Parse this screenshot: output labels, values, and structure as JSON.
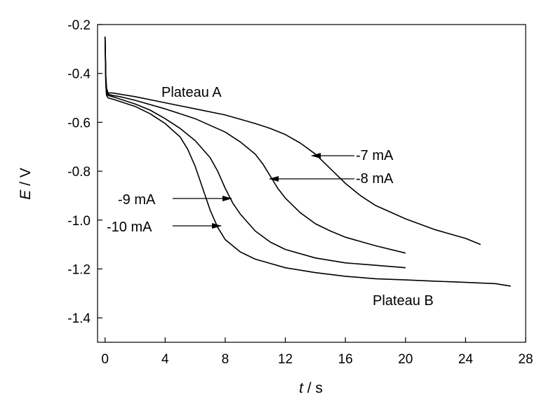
{
  "chart_data": {
    "type": "line",
    "xlabel_var": "t",
    "xlabel_unit": " / s",
    "ylabel_var": "E",
    "ylabel_unit": " / V",
    "xlim": [
      -0.5,
      28
    ],
    "ylim": [
      -1.5,
      -0.2
    ],
    "xticks": [
      0,
      4,
      8,
      12,
      16,
      20,
      24,
      28
    ],
    "yticks": [
      -0.2,
      -0.4,
      -0.6,
      -0.8,
      -1.0,
      -1.2,
      -1.4
    ],
    "ytick_labels": [
      "-0.2",
      "-0.4",
      "-0.6",
      "-0.8",
      "-1.0",
      "-1.2",
      "-1.4"
    ],
    "grid": false,
    "legend": "none",
    "line_color": "#000000",
    "series": [
      {
        "name": "-7 mA",
        "x": [
          0,
          0.05,
          0.1,
          0.2,
          0.5,
          1,
          2,
          4,
          6,
          8,
          10,
          11,
          12,
          13,
          14,
          15,
          16,
          17,
          18,
          20,
          22,
          24,
          25
        ],
        "y": [
          -0.25,
          -0.41,
          -0.46,
          -0.48,
          -0.48,
          -0.485,
          -0.495,
          -0.52,
          -0.545,
          -0.57,
          -0.605,
          -0.625,
          -0.65,
          -0.685,
          -0.73,
          -0.79,
          -0.85,
          -0.9,
          -0.94,
          -0.995,
          -1.04,
          -1.075,
          -1.1
        ]
      },
      {
        "name": "-8 mA",
        "x": [
          0,
          0.05,
          0.1,
          0.2,
          0.5,
          1,
          2,
          4,
          6,
          8,
          9,
          10,
          10.5,
          11,
          11.5,
          12,
          13,
          14,
          15,
          16,
          18,
          20
        ],
        "y": [
          -0.25,
          -0.43,
          -0.47,
          -0.485,
          -0.49,
          -0.495,
          -0.51,
          -0.545,
          -0.585,
          -0.64,
          -0.68,
          -0.73,
          -0.77,
          -0.82,
          -0.87,
          -0.91,
          -0.97,
          -1.015,
          -1.045,
          -1.07,
          -1.105,
          -1.135
        ]
      },
      {
        "name": "-9 mA",
        "x": [
          0,
          0.05,
          0.1,
          0.2,
          0.5,
          1,
          2,
          3,
          4,
          5,
          6,
          7,
          7.5,
          8,
          8.5,
          9,
          10,
          11,
          12,
          14,
          16,
          18,
          20
        ],
        "y": [
          -0.25,
          -0.44,
          -0.48,
          -0.49,
          -0.495,
          -0.505,
          -0.525,
          -0.55,
          -0.585,
          -0.625,
          -0.675,
          -0.745,
          -0.8,
          -0.87,
          -0.93,
          -0.975,
          -1.045,
          -1.09,
          -1.12,
          -1.155,
          -1.175,
          -1.185,
          -1.195
        ]
      },
      {
        "name": "-10 mA",
        "x": [
          0,
          0.05,
          0.1,
          0.2,
          0.5,
          1,
          2,
          3,
          4,
          5,
          5.5,
          6,
          6.5,
          7,
          7.5,
          8,
          9,
          10,
          12,
          14,
          16,
          18,
          20,
          22,
          24,
          26,
          27
        ],
        "y": [
          -0.25,
          -0.45,
          -0.49,
          -0.5,
          -0.505,
          -0.515,
          -0.535,
          -0.565,
          -0.605,
          -0.66,
          -0.71,
          -0.78,
          -0.87,
          -0.96,
          -1.03,
          -1.08,
          -1.13,
          -1.16,
          -1.195,
          -1.215,
          -1.23,
          -1.24,
          -1.245,
          -1.25,
          -1.255,
          -1.26,
          -1.27
        ]
      }
    ],
    "annotations": [
      {
        "label": "Plateau A"
      },
      {
        "label": "Plateau B"
      },
      {
        "label": "-7 mA"
      },
      {
        "label": "-8 mA"
      },
      {
        "label": "-9 mA"
      },
      {
        "label": "-10 mA"
      }
    ]
  }
}
